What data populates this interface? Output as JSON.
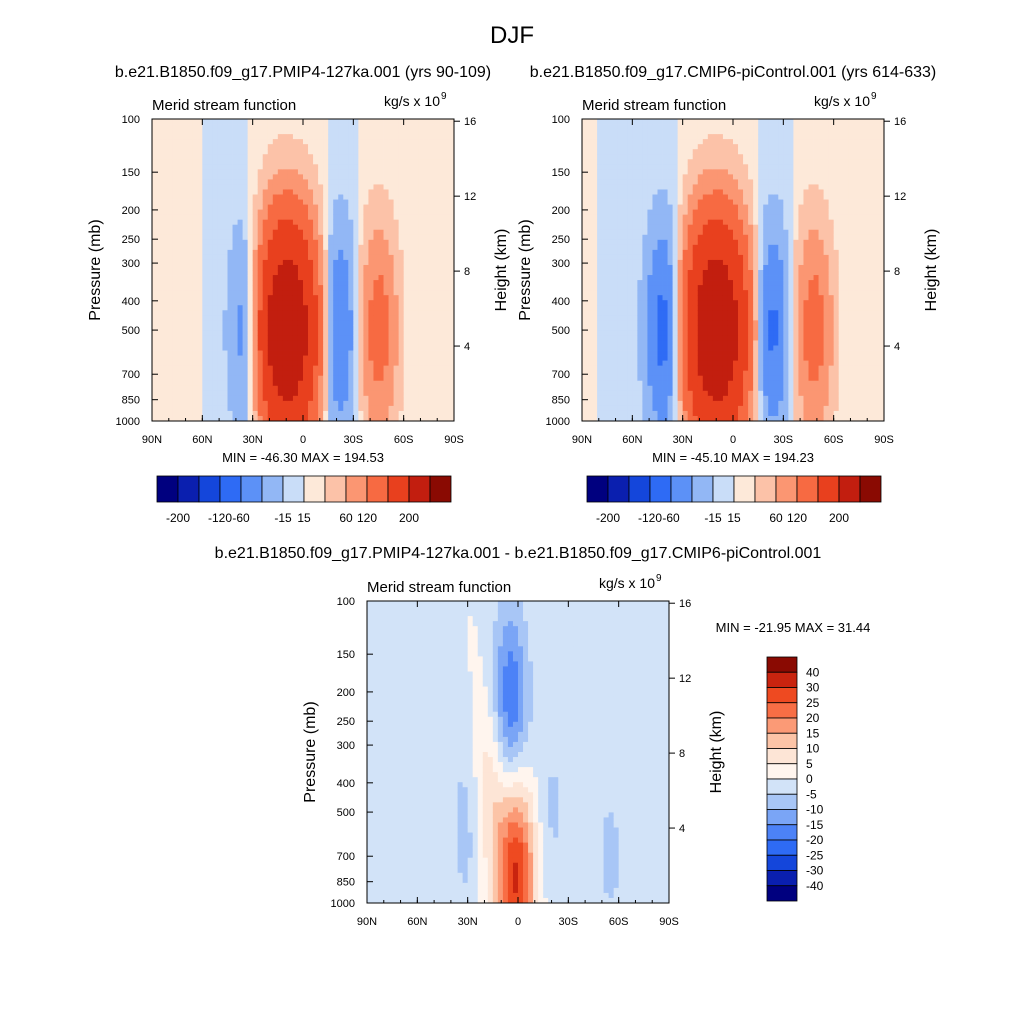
{
  "figure": {
    "title": "DJF"
  },
  "colors": {
    "palette_12": [
      "#00007F",
      "#0A1FAF",
      "#1446DB",
      "#2E6BF5",
      "#5C91F7",
      "#92B7F5",
      "#C9DDF8",
      "#FDE9D9",
      "#FCC2A8",
      "#FB9672",
      "#F76A42",
      "#E8401E",
      "#C21E0F",
      "#8A0A02"
    ],
    "palette_diff": [
      "#00007F",
      "#0A1FAF",
      "#1446DB",
      "#2E6BF5",
      "#4C82F7",
      "#7AA5F6",
      "#A8C6F6",
      "#D2E3F8",
      "#FFF5EE",
      "#FDE5D6",
      "#FCC4A7",
      "#FB9A76",
      "#F86E45",
      "#EE4A21",
      "#C9240F",
      "#8A0A02"
    ]
  },
  "chart_data": [
    {
      "type": "heatmap",
      "title": "b.e21.B1850.f09_g17.PMIP4-127ka.001 (yrs 90-109)",
      "left_label": "Merid stream function",
      "right_label": "kg/s x 10",
      "right_label_sup": "9",
      "ylabel": "Pressure (mb)",
      "ylabel_right": "Height (km)",
      "x_ticks": [
        "90N",
        "60N",
        "30N",
        "0",
        "30S",
        "60S",
        "90S"
      ],
      "y_ticks": [
        "100",
        "150",
        "200",
        "250",
        "300",
        "400",
        "500",
        "700",
        "850",
        "1000"
      ],
      "y_ticks_right": [
        "16",
        "12",
        "8",
        "4"
      ],
      "stats": "MIN = -46.30  MAX = 194.53",
      "min": -46.3,
      "max": 194.53,
      "colorbar_labels": [
        "-200",
        "-120",
        "-60",
        "-15",
        "15",
        "60",
        "120",
        "200"
      ],
      "features": [
        {
          "lat": 32,
          "p_center": 500,
          "amplitude": -46.3
        },
        {
          "lat": 10,
          "p_center": 500,
          "amplitude": 194.5
        },
        {
          "lat": -20,
          "p_center": 500,
          "amplitude": -40
        },
        {
          "lat": -45,
          "p_center": 500,
          "amplitude": 40
        }
      ]
    },
    {
      "type": "heatmap",
      "title": "b.e21.B1850.f09_g17.CMIP6-piControl.001 (yrs 614-633)",
      "left_label": "Merid stream function",
      "right_label": "kg/s x 10",
      "right_label_sup": "9",
      "ylabel": "Pressure (mb)",
      "ylabel_right": "Height (km)",
      "x_ticks": [
        "90N",
        "60N",
        "30N",
        "0",
        "30S",
        "60S",
        "90S"
      ],
      "y_ticks": [
        "100",
        "150",
        "200",
        "250",
        "300",
        "400",
        "500",
        "700",
        "850",
        "1000"
      ],
      "y_ticks_right": [
        "16",
        "12",
        "8",
        "4"
      ],
      "stats": "MIN = -45.10  MAX = 194.23",
      "min": -45.1,
      "max": 194.23,
      "colorbar_labels": [
        "-200",
        "-120",
        "-60",
        "-15",
        "15",
        "60",
        "120",
        "200"
      ],
      "features": [
        {
          "lat": 40,
          "p_center": 500,
          "amplitude": -45.1
        },
        {
          "lat": 10,
          "p_center": 500,
          "amplitude": 194.2
        },
        {
          "lat": -22,
          "p_center": 500,
          "amplitude": -40
        },
        {
          "lat": -48,
          "p_center": 500,
          "amplitude": 40
        }
      ]
    },
    {
      "type": "heatmap",
      "title": "b.e21.B1850.f09_g17.PMIP4-127ka.001 - b.e21.B1850.f09_g17.CMIP6-piControl.001",
      "left_label": "Merid stream function",
      "right_label": "kg/s x 10",
      "right_label_sup": "9",
      "ylabel": "Pressure (mb)",
      "ylabel_right": "Height (km)",
      "x_ticks": [
        "90N",
        "60N",
        "30N",
        "0",
        "30S",
        "60S",
        "90S"
      ],
      "y_ticks": [
        "100",
        "150",
        "200",
        "250",
        "300",
        "400",
        "500",
        "700",
        "850",
        "1000"
      ],
      "y_ticks_right": [
        "16",
        "12",
        "8",
        "4"
      ],
      "stats": "MIN = -21.95  MAX =  31.44",
      "min": -21.95,
      "max": 31.44,
      "colorbar_labels": [
        "40",
        "30",
        "25",
        "20",
        "15",
        "10",
        "5",
        "0",
        "-5",
        "-10",
        "-15",
        "-20",
        "-25",
        "-30",
        "-40"
      ],
      "features": [
        {
          "lat": 5,
          "p_center": 230,
          "amplitude": -21.95
        },
        {
          "lat": 1,
          "p_center": 800,
          "amplitude": 31.44
        },
        {
          "lat": 16,
          "p_center": 400,
          "amplitude": 12
        },
        {
          "lat": 30,
          "p_center": 550,
          "amplitude": -8
        },
        {
          "lat": -20,
          "p_center": 500,
          "amplitude": -6
        },
        {
          "lat": -55,
          "p_center": 700,
          "amplitude": -6
        }
      ]
    }
  ]
}
